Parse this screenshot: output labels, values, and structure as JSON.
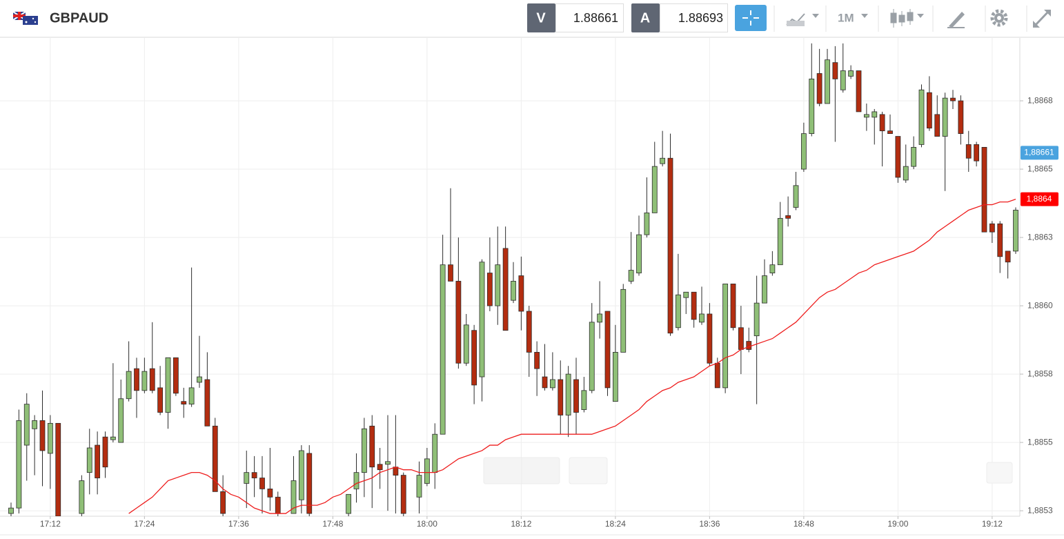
{
  "header": {
    "symbol": "GBPAUD",
    "sell_label": "V",
    "sell_price": 1.88661,
    "buy_label": "A",
    "buy_price": 1.88693,
    "timeframe": "1M"
  },
  "chart_data": {
    "type": "candlestick",
    "x": [
      "17:07",
      "17:08",
      "17:09",
      "17:10",
      "17:11",
      "17:12",
      "17:13",
      "17:14",
      "17:15",
      "17:16",
      "17:17",
      "17:18",
      "17:19",
      "17:20",
      "17:21",
      "17:22",
      "17:23",
      "17:24",
      "17:25",
      "17:26",
      "17:27",
      "17:28",
      "17:29",
      "17:30",
      "17:31",
      "17:32",
      "17:33",
      "17:34",
      "17:35",
      "17:36",
      "17:37",
      "17:38",
      "17:39",
      "17:40",
      "17:41",
      "17:42",
      "17:43",
      "17:44",
      "17:45",
      "17:46",
      "17:47",
      "17:48",
      "17:49",
      "17:50",
      "17:51",
      "17:52",
      "17:53",
      "17:54",
      "17:55",
      "17:56",
      "17:57",
      "17:58",
      "17:59",
      "18:00",
      "18:01",
      "18:02",
      "18:03",
      "18:04",
      "18:05",
      "18:06",
      "18:07",
      "18:08",
      "18:09",
      "18:10",
      "18:11",
      "18:12",
      "18:13",
      "18:14",
      "18:15",
      "18:16",
      "18:17",
      "18:18",
      "18:19",
      "18:20",
      "18:21",
      "18:22",
      "18:23",
      "18:24",
      "18:25",
      "18:26",
      "18:27",
      "18:28",
      "18:29",
      "18:30",
      "18:31",
      "18:32",
      "18:33",
      "18:34",
      "18:35",
      "18:36",
      "18:37",
      "18:38",
      "18:39",
      "18:40",
      "18:41",
      "18:42",
      "18:43",
      "18:44",
      "18:45",
      "18:46",
      "18:47",
      "18:48",
      "18:49",
      "18:50",
      "18:51",
      "18:52",
      "18:53",
      "18:54",
      "18:55",
      "18:56",
      "18:57",
      "18:58",
      "18:59",
      "19:00",
      "19:01",
      "19:02",
      "19:03",
      "19:04",
      "19:05",
      "19:06",
      "19:07",
      "19:08",
      "19:09",
      "19:10",
      "19:11",
      "19:12",
      "19:13",
      "19:14",
      "19:15"
    ],
    "open": [
      1.88529,
      1.88531,
      1.88554,
      1.8856,
      1.88563,
      1.88551,
      1.88562,
      null,
      null,
      1.88529,
      1.88544,
      1.88554,
      1.88557,
      1.88556,
      1.88555,
      1.88571,
      1.88582,
      1.88574,
      1.88582,
      1.88575,
      1.88566,
      1.88586,
      1.8857,
      1.88569,
      1.88577,
      1.88578,
      1.88561,
      1.88537,
      null,
      null,
      1.8854,
      1.88544,
      1.88542,
      1.88538,
      1.88535,
      null,
      1.88529,
      1.88534,
      1.88551,
      null,
      null,
      null,
      null,
      1.88529,
      1.88538,
      1.88544,
      1.88561,
      1.88547,
      1.88547,
      1.88546,
      1.88543,
      null,
      1.88535,
      1.8854,
      1.88544,
      1.88558,
      1.8862,
      1.88614,
      1.88584,
      1.88596,
      1.88579,
      1.88617,
      1.88605,
      1.88626,
      1.88607,
      1.88616,
      1.88603,
      1.88588,
      1.88579,
      1.88575,
      1.88578,
      1.88565,
      1.88578,
      1.88567,
      1.88574,
      1.88599,
      1.88603,
      1.8857,
      1.88588,
      1.88614,
      1.88617,
      1.88631,
      1.88639,
      1.88657,
      1.88659,
      1.88597,
      1.88608,
      1.8861,
      1.88599,
      1.88602,
      1.88584,
      1.88575,
      1.88613,
      1.88597,
      1.88592,
      1.88594,
      1.88606,
      1.88617,
      1.8862,
      1.88638,
      1.88641,
      1.88655,
      1.88668,
      1.8869,
      1.88679,
      1.88694,
      1.88684,
      1.88689,
      1.88691,
      1.88674,
      1.88674,
      1.88675,
      1.88669,
      1.88667,
      1.88651,
      1.88656,
      1.88664,
      1.88683,
      1.88675,
      1.88667,
      1.88681,
      1.8868,
      1.88664,
      1.88664,
      1.88663,
      1.88635,
      1.88635,
      1.88625,
      1.88625
    ],
    "high": [
      1.88533,
      1.88567,
      1.88573,
      1.88565,
      1.88574,
      1.88565,
      1.88562,
      null,
      null,
      1.88543,
      1.8856,
      1.88559,
      1.88559,
      1.88584,
      1.88578,
      1.88592,
      1.88586,
      1.88586,
      1.88599,
      1.88583,
      1.88586,
      1.88586,
      1.88575,
      1.88619,
      1.88594,
      1.88588,
      1.88564,
      1.88543,
      null,
      null,
      1.88552,
      1.8855,
      1.8855,
      1.88553,
      1.88537,
      null,
      1.8855,
      1.88554,
      1.88554,
      null,
      null,
      null,
      null,
      1.88536,
      1.88551,
      1.88564,
      1.88565,
      1.88553,
      1.88565,
      1.88565,
      1.88544,
      null,
      1.88548,
      1.88553,
      1.88562,
      1.88631,
      1.88648,
      1.8863,
      1.88602,
      1.88598,
      1.88622,
      1.8863,
      1.88634,
      1.88634,
      1.88621,
      1.88623,
      1.88605,
      1.88592,
      1.88591,
      1.88588,
      1.88585,
      1.88583,
      1.88586,
      1.88579,
      1.88606,
      1.88614,
      1.88603,
      1.88598,
      1.88613,
      1.88632,
      1.88638,
      1.88652,
      1.88665,
      1.88669,
      1.88668,
      1.88624,
      1.8861,
      1.8861,
      1.88612,
      1.88606,
      1.88586,
      1.88613,
      1.88613,
      1.88605,
      1.88597,
      1.88616,
      1.88622,
      1.88625,
      1.88643,
      1.88645,
      1.88654,
      1.88672,
      1.88701,
      1.88699,
      1.88699,
      1.887,
      1.88701,
      1.88693,
      1.88691,
      1.88679,
      1.88677,
      1.88676,
      1.88675,
      1.88667,
      1.88664,
      1.88667,
      1.88686,
      1.88689,
      1.88682,
      1.88683,
      1.88684,
      1.88682,
      1.88669,
      1.88665,
      1.88663,
      1.88636,
      1.88636,
      1.88625,
      1.88641
    ],
    "low": [
      1.88528,
      1.88529,
      1.88541,
      1.88543,
      1.88539,
      1.88538,
      1.88528,
      null,
      null,
      1.88528,
      1.88536,
      1.88536,
      1.88542,
      1.88555,
      1.88555,
      1.8857,
      1.88564,
      1.88573,
      1.88573,
      1.88565,
      1.8856,
      1.88572,
      1.88564,
      1.88568,
      1.88575,
      1.88561,
      1.88537,
      1.88528,
      null,
      null,
      1.88531,
      1.88535,
      1.88529,
      1.8853,
      1.88528,
      null,
      1.88529,
      1.88529,
      1.88528,
      null,
      null,
      null,
      null,
      1.88528,
      1.88533,
      1.88535,
      1.88531,
      1.88538,
      1.8853,
      1.88529,
      1.88528,
      null,
      1.88529,
      1.88539,
      1.88538,
      1.88558,
      1.88614,
      1.88582,
      1.88583,
      1.88569,
      1.8857,
      1.88603,
      1.88598,
      1.88596,
      1.88606,
      1.88596,
      1.88579,
      1.88572,
      1.88574,
      1.88574,
      1.88558,
      1.88557,
      1.88558,
      1.88566,
      1.88573,
      1.88593,
      1.88572,
      1.8857,
      1.88588,
      1.88613,
      1.88616,
      1.8863,
      1.88639,
      1.88656,
      1.88594,
      1.88596,
      1.88602,
      1.88597,
      1.88598,
      1.88583,
      1.88575,
      1.88573,
      1.88596,
      1.8858,
      1.88588,
      1.88569,
      1.88606,
      1.88616,
      1.8862,
      1.88634,
      1.8864,
      1.88654,
      1.88667,
      1.88678,
      1.88679,
      1.88665,
      1.88683,
      1.88688,
      1.88676,
      1.88669,
      1.88664,
      1.88656,
      1.88668,
      1.8865,
      1.8865,
      1.88655,
      1.88663,
      1.88669,
      1.88667,
      1.88647,
      1.88677,
      1.88664,
      1.88654,
      1.88656,
      1.88632,
      1.88628,
      1.88617,
      1.88615,
      1.88624
    ],
    "close": [
      1.88531,
      1.88563,
      1.88569,
      1.88563,
      1.88552,
      1.88562,
      1.88528,
      null,
      null,
      1.88541,
      1.88553,
      1.88542,
      1.88546,
      1.88557,
      1.88571,
      1.88581,
      1.88574,
      1.88581,
      1.88574,
      1.88566,
      1.88586,
      1.88573,
      1.88569,
      1.88575,
      1.88579,
      1.88561,
      1.88537,
      1.88529,
      null,
      null,
      1.88544,
      1.88542,
      1.88538,
      1.88535,
      1.88529,
      null,
      1.88541,
      1.88552,
      1.88529,
      null,
      null,
      null,
      null,
      1.88536,
      1.88544,
      1.8856,
      1.88546,
      1.88545,
      1.88548,
      1.88543,
      1.88529,
      null,
      1.88543,
      1.88549,
      1.88558,
      1.8862,
      1.88614,
      1.88584,
      1.88598,
      1.88576,
      1.88621,
      1.88605,
      1.8862,
      1.88596,
      1.88614,
      1.88603,
      1.88588,
      1.88582,
      1.88575,
      1.88578,
      1.88565,
      1.8858,
      1.88566,
      1.88574,
      1.88599,
      1.88602,
      1.88575,
      1.88588,
      1.88611,
      1.88618,
      1.88631,
      1.88639,
      1.88656,
      1.88659,
      1.88595,
      1.88609,
      1.8861,
      1.886,
      1.88602,
      1.88584,
      1.88575,
      1.88613,
      1.88597,
      1.88589,
      1.88589,
      1.88606,
      1.88616,
      1.8862,
      1.88637,
      1.88637,
      1.88649,
      1.88668,
      1.88688,
      1.88679,
      1.88695,
      1.88688,
      1.88691,
      1.88691,
      1.88676,
      1.88675,
      1.88676,
      1.88669,
      1.88668,
      1.88652,
      1.88656,
      1.88663,
      1.88684,
      1.8867,
      1.88667,
      1.88681,
      1.8868,
      1.88668,
      1.88659,
      1.88658,
      1.88632,
      1.88632,
      1.88623,
      1.88621,
      1.8864
    ],
    "up_color": "#8fbf77",
    "down_color": "#b32d10",
    "ma": {
      "color": "#ee1c1c",
      "values": [
        null,
        null,
        null,
        null,
        null,
        null,
        null,
        null,
        null,
        null,
        null,
        null,
        null,
        null,
        null,
        1.88529,
        1.88531,
        1.88533,
        1.88535,
        1.88538,
        1.88541,
        1.88542,
        1.88543,
        1.88544,
        1.88544,
        1.88543,
        1.88541,
        1.88538,
        1.88536,
        1.88535,
        1.88533,
        1.88531,
        1.8853,
        1.88529,
        1.88529,
        1.88529,
        1.88531,
        1.88532,
        1.88532,
        1.88532,
        1.88533,
        1.88535,
        1.88536,
        1.88538,
        1.8854,
        1.88541,
        1.88542,
        1.88544,
        1.88545,
        1.88546,
        1.88545,
        1.88545,
        1.88544,
        1.88544,
        1.88544,
        1.88545,
        1.88547,
        1.88549,
        1.8855,
        1.88551,
        1.88552,
        1.88554,
        1.88554,
        1.88556,
        1.88557,
        1.88558,
        1.88558,
        1.88558,
        1.88558,
        1.88558,
        1.88558,
        1.88558,
        1.88558,
        1.88558,
        1.88558,
        1.88559,
        1.8856,
        1.88561,
        1.88563,
        1.88565,
        1.88567,
        1.8857,
        1.88572,
        1.88574,
        1.88575,
        1.88577,
        1.88578,
        1.88579,
        1.88581,
        1.88583,
        1.88584,
        1.88586,
        1.88587,
        1.88589,
        1.8859,
        1.88591,
        1.88592,
        1.88593,
        1.88595,
        1.88597,
        1.88599,
        1.88602,
        1.88605,
        1.88608,
        1.8861,
        1.88611,
        1.88613,
        1.88615,
        1.88617,
        1.88618,
        1.8862,
        1.88621,
        1.88622,
        1.88623,
        1.88624,
        1.88625,
        1.88627,
        1.88629,
        1.88632,
        1.88634,
        1.88636,
        1.88638,
        1.8864,
        1.88641,
        1.88642,
        1.88642,
        1.88643,
        1.88643,
        1.88644
      ]
    },
    "ylim": [
      1.88528,
      1.88703
    ],
    "yticks": [
      {
        "value": 1.8853,
        "label": "1,8853"
      },
      {
        "value": 1.88555,
        "label": "1,8855"
      },
      {
        "value": 1.8858,
        "label": "1,8858"
      },
      {
        "value": 1.88605,
        "label": "1,8860"
      },
      {
        "value": 1.8863,
        "label": "1,8863"
      },
      {
        "value": 1.88655,
        "label": "1,8865"
      },
      {
        "value": 1.8868,
        "label": "1,8868"
      }
    ],
    "xticks": [
      "17:12",
      "17:24",
      "17:36",
      "17:48",
      "18:00",
      "18:12",
      "18:24",
      "18:36",
      "18:48",
      "19:00",
      "19:12"
    ],
    "grid": true,
    "price_marker": {
      "value": 1.88661,
      "label": "1,88661",
      "color": "#4aa3df"
    },
    "ma_marker": {
      "value": 1.88644,
      "label": "1,8864",
      "color": "#ff0000"
    }
  }
}
